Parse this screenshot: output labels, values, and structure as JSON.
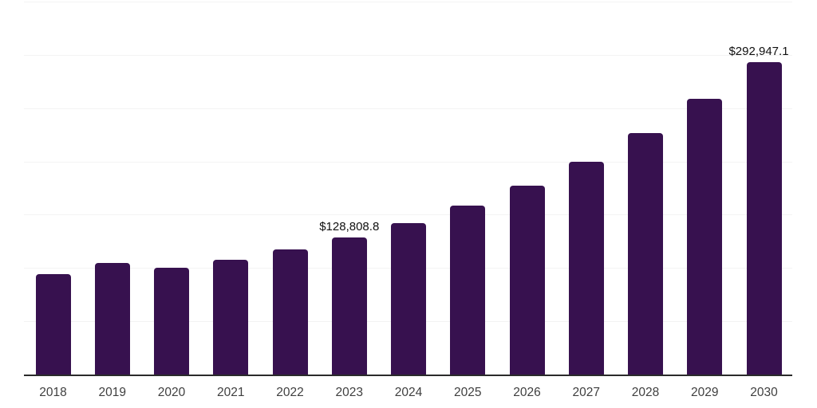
{
  "chart_data": {
    "type": "bar",
    "title": "",
    "xlabel": "",
    "ylabel": "",
    "categories": [
      "2018",
      "2019",
      "2020",
      "2021",
      "2022",
      "2023",
      "2024",
      "2025",
      "2026",
      "2027",
      "2028",
      "2029",
      "2030"
    ],
    "values": [
      94500,
      104400,
      100200,
      107400,
      117800,
      128808.8,
      142100,
      158500,
      177300,
      199700,
      226600,
      259100,
      292947.1
    ],
    "data_labels": [
      null,
      null,
      null,
      null,
      null,
      "$128,808.8",
      null,
      null,
      null,
      null,
      null,
      null,
      "$292,947.1"
    ],
    "ylim": [
      0,
      350000
    ],
    "gridline_step": 50000,
    "grid": "horizontal",
    "legend": "none",
    "colors": {
      "bar_fill": "#37114F",
      "axis_line": "#2b2b2b",
      "gridline": "#f3f3f3",
      "tick_label": "#3f3f3f",
      "data_label": "#101010",
      "background": "#ffffff"
    }
  }
}
